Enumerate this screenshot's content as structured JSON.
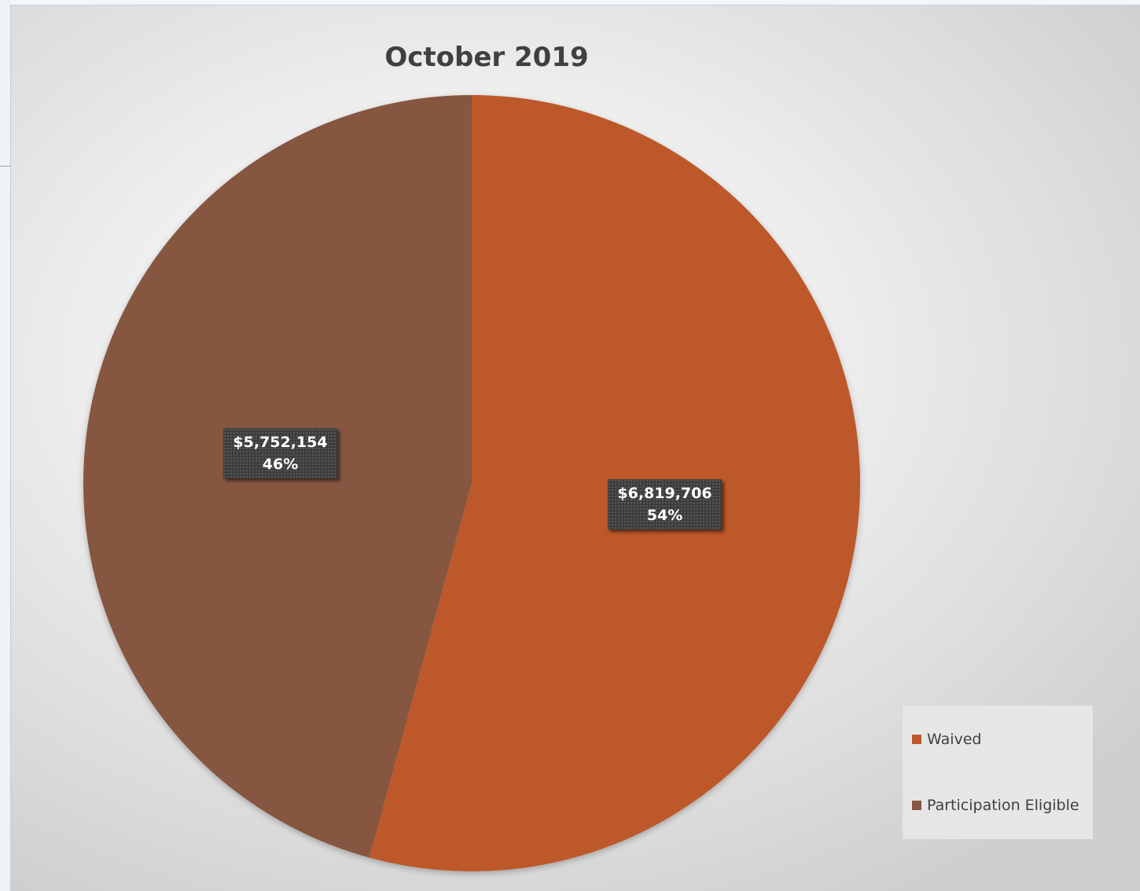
{
  "chart_data": {
    "type": "pie",
    "title": "October 2019",
    "slices": [
      {
        "name": "Waived",
        "value": 6819706,
        "value_label": "$6,819,706",
        "percent_label": "54%",
        "color": "#bd582c"
      },
      {
        "name": "Participation Eligible",
        "value": 5752154,
        "value_label": "$5,752,154",
        "percent_label": "46%",
        "color": "#865640"
      }
    ],
    "legend_position": "bottom-right",
    "start_angle": "12 o'clock",
    "direction": "clockwise"
  }
}
